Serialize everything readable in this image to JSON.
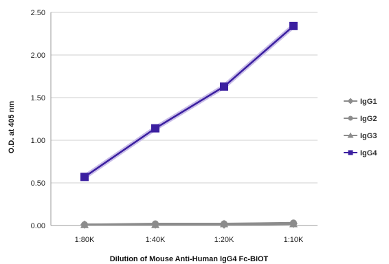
{
  "chart_data": {
    "type": "line",
    "title": "",
    "xlabel": "Dilution of Mouse Anti-Human IgG4 Fc-BIOT",
    "ylabel": "O.D. at 405 nm",
    "categories": [
      "1:80K",
      "1:40K",
      "1:20K",
      "1:10K"
    ],
    "ylim": [
      0,
      2.5
    ],
    "yticks": [
      "0.00",
      "0.50",
      "1.00",
      "1.50",
      "2.00",
      "2.50"
    ],
    "grid": "horizontal",
    "legend_position": "right",
    "series": [
      {
        "name": "IgG1",
        "values": [
          0.01,
          0.01,
          0.01,
          0.02
        ],
        "color": "#8c8c8c",
        "marker": "diamond"
      },
      {
        "name": "IgG2",
        "values": [
          0.01,
          0.02,
          0.02,
          0.03
        ],
        "color": "#8c8c8c",
        "marker": "circle"
      },
      {
        "name": "IgG3",
        "values": [
          0.01,
          0.01,
          0.02,
          0.02
        ],
        "color": "#8c8c8c",
        "marker": "triangle"
      },
      {
        "name": "IgG4",
        "values": [
          0.57,
          1.14,
          1.63,
          2.34
        ],
        "color": "#3b1fa0",
        "marker": "square"
      }
    ]
  }
}
